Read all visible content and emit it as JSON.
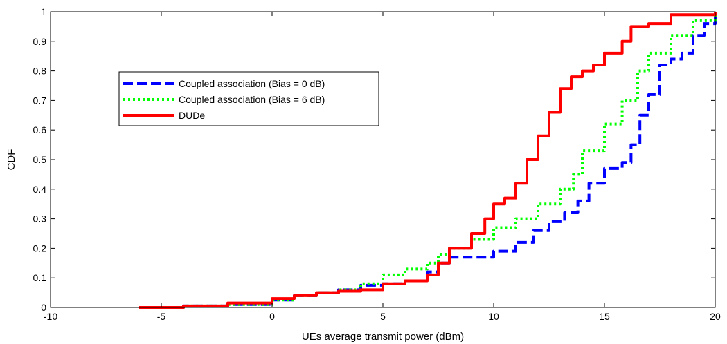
{
  "chart_data": {
    "type": "line",
    "xlabel": "UEs average transmit power (dBm)",
    "ylabel": "CDF",
    "xlim": [
      -10,
      20
    ],
    "ylim": [
      0,
      1
    ],
    "xticks": [
      -10,
      -5,
      0,
      5,
      10,
      15,
      20
    ],
    "yticks": [
      0,
      0.1,
      0.2,
      0.3,
      0.4,
      0.5,
      0.6,
      0.7,
      0.8,
      0.9,
      1
    ],
    "grid": false,
    "legend": "top-left",
    "series": [
      {
        "name": "Coupled association (Bias = 0 dB)",
        "color": "#0000ff",
        "style": "dashed",
        "points": [
          [
            -6,
            0
          ],
          [
            -4,
            0.005
          ],
          [
            -2,
            0.01
          ],
          [
            0,
            0.025
          ],
          [
            1,
            0.04
          ],
          [
            2,
            0.05
          ],
          [
            3,
            0.06
          ],
          [
            4,
            0.075
          ],
          [
            5,
            0.08
          ],
          [
            6,
            0.09
          ],
          [
            7,
            0.12
          ],
          [
            7.5,
            0.15
          ],
          [
            8,
            0.17
          ],
          [
            9,
            0.17
          ],
          [
            10,
            0.19
          ],
          [
            11,
            0.22
          ],
          [
            11.8,
            0.26
          ],
          [
            12.5,
            0.29
          ],
          [
            13.2,
            0.32
          ],
          [
            13.8,
            0.36
          ],
          [
            14.3,
            0.42
          ],
          [
            15,
            0.47
          ],
          [
            15.8,
            0.49
          ],
          [
            16.2,
            0.55
          ],
          [
            16.6,
            0.65
          ],
          [
            17,
            0.72
          ],
          [
            17.5,
            0.82
          ],
          [
            18,
            0.84
          ],
          [
            18.5,
            0.86
          ],
          [
            19,
            0.92
          ],
          [
            19.5,
            0.96
          ],
          [
            20,
            0.99
          ]
        ]
      },
      {
        "name": "Coupled association (Bias = 6 dB)",
        "color": "#00ff00",
        "style": "dotted",
        "points": [
          [
            -6,
            0
          ],
          [
            -4,
            0.005
          ],
          [
            -2,
            0.01
          ],
          [
            0,
            0.025
          ],
          [
            1,
            0.04
          ],
          [
            2,
            0.05
          ],
          [
            3,
            0.06
          ],
          [
            4,
            0.08
          ],
          [
            5,
            0.11
          ],
          [
            6,
            0.13
          ],
          [
            7,
            0.15
          ],
          [
            7.5,
            0.18
          ],
          [
            8,
            0.2
          ],
          [
            9,
            0.23
          ],
          [
            10,
            0.27
          ],
          [
            11,
            0.3
          ],
          [
            12,
            0.35
          ],
          [
            13,
            0.4
          ],
          [
            13.6,
            0.45
          ],
          [
            14,
            0.53
          ],
          [
            15,
            0.62
          ],
          [
            15.8,
            0.7
          ],
          [
            16.5,
            0.8
          ],
          [
            17,
            0.86
          ],
          [
            18,
            0.92
          ],
          [
            19,
            0.97
          ],
          [
            20,
            1
          ]
        ]
      },
      {
        "name": "DUDe",
        "color": "#ff0000",
        "style": "solid",
        "points": [
          [
            -6,
            0
          ],
          [
            -4,
            0.005
          ],
          [
            -2,
            0.015
          ],
          [
            0,
            0.03
          ],
          [
            1,
            0.04
          ],
          [
            2,
            0.05
          ],
          [
            3,
            0.055
          ],
          [
            4,
            0.06
          ],
          [
            5,
            0.08
          ],
          [
            6,
            0.09
          ],
          [
            7,
            0.11
          ],
          [
            7.5,
            0.15
          ],
          [
            8,
            0.2
          ],
          [
            9,
            0.25
          ],
          [
            9.6,
            0.3
          ],
          [
            10,
            0.35
          ],
          [
            10.5,
            0.37
          ],
          [
            11,
            0.42
          ],
          [
            11.5,
            0.5
          ],
          [
            12,
            0.58
          ],
          [
            12.5,
            0.66
          ],
          [
            13,
            0.74
          ],
          [
            13.5,
            0.78
          ],
          [
            14,
            0.8
          ],
          [
            14.5,
            0.82
          ],
          [
            15,
            0.86
          ],
          [
            15.8,
            0.9
          ],
          [
            16.2,
            0.95
          ],
          [
            17,
            0.96
          ],
          [
            18,
            0.99
          ],
          [
            19,
            0.99
          ],
          [
            20,
            1
          ]
        ]
      }
    ]
  }
}
